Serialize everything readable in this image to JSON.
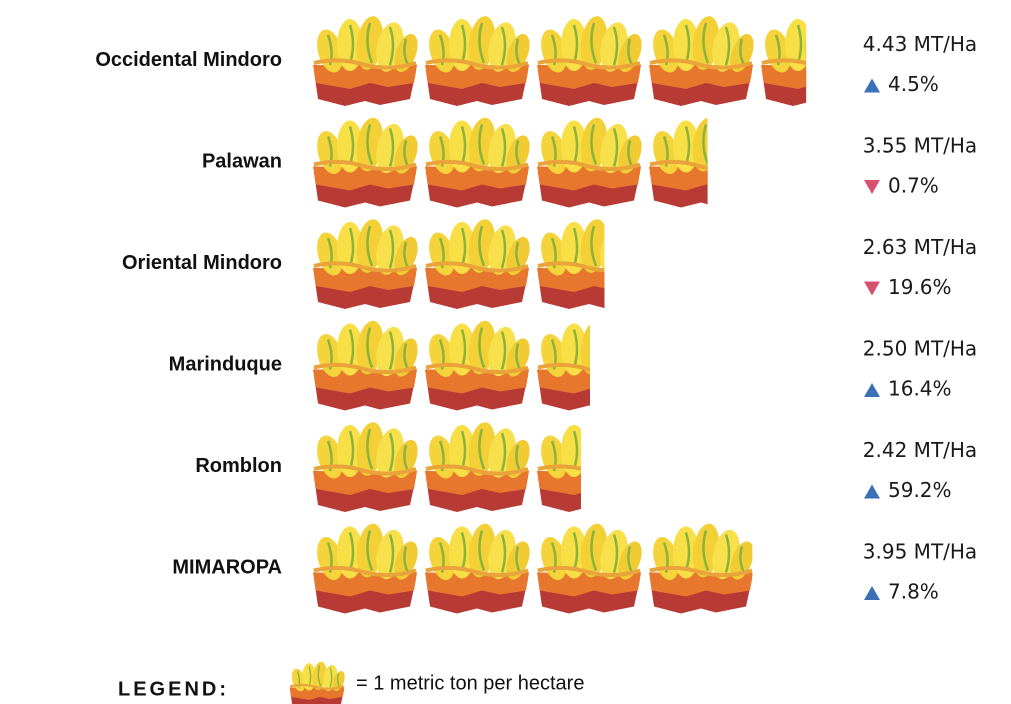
{
  "chart_data": {
    "type": "pictograph",
    "categories": [
      "Occidental Mindoro",
      "Palawan",
      "Oriental Mindoro",
      "Marinduque",
      "Romblon",
      "MIMAROPA"
    ],
    "values": [
      4.43,
      3.55,
      2.63,
      2.5,
      2.42,
      3.95
    ],
    "value_labels": [
      "4.43 MT/Ha",
      "3.55 MT/Ha",
      "2.63 MT/Ha",
      "2.50 MT/Ha",
      "2.42 MT/Ha",
      "3.95 MT/Ha"
    ],
    "changes": [
      4.5,
      -0.7,
      -19.6,
      16.4,
      59.2,
      7.8
    ],
    "change_labels": [
      "4.5%",
      "0.7%",
      "19.6%",
      "16.4%",
      "59.2%",
      "7.8%"
    ],
    "up_color": "#3b6fb6",
    "down_color": "#d9506c",
    "icon_unit": 1,
    "legend_title": "LEGEND:",
    "legend_text": "= 1 metric ton per hectare"
  }
}
